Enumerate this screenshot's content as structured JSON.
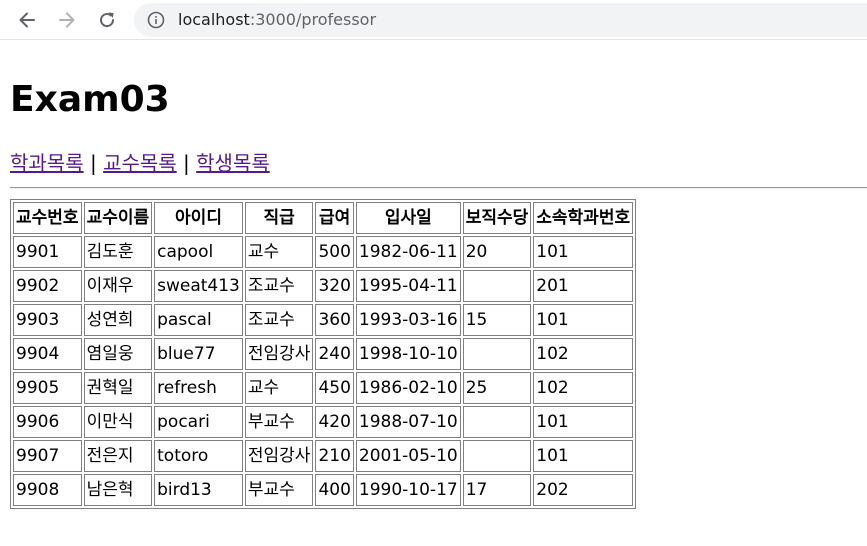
{
  "browser": {
    "url_host": "localhost",
    "url_path": ":3000/professor"
  },
  "page": {
    "title": "Exam03",
    "nav_links": [
      {
        "label": "학과목록"
      },
      {
        "label": "교수목록"
      },
      {
        "label": "학생목록"
      }
    ],
    "separator": "|"
  },
  "table": {
    "headers": [
      "교수번호",
      "교수이름",
      "아이디",
      "직급",
      "급여",
      "입사일",
      "보직수당",
      "소속학과번호"
    ],
    "rows": [
      [
        "9901",
        "김도훈",
        "capool",
        "교수",
        "500",
        "1982-06-11",
        "20",
        "101"
      ],
      [
        "9902",
        "이재우",
        "sweat413",
        "조교수",
        "320",
        "1995-04-11",
        "",
        "201"
      ],
      [
        "9903",
        "성연희",
        "pascal",
        "조교수",
        "360",
        "1993-03-16",
        "15",
        "101"
      ],
      [
        "9904",
        "염일웅",
        "blue77",
        "전임강사",
        "240",
        "1998-10-10",
        "",
        "102"
      ],
      [
        "9905",
        "권혁일",
        "refresh",
        "교수",
        "450",
        "1986-02-10",
        "25",
        "102"
      ],
      [
        "9906",
        "이만식",
        "pocari",
        "부교수",
        "420",
        "1988-07-10",
        "",
        "101"
      ],
      [
        "9907",
        "전은지",
        "totoro",
        "전임강사",
        "210",
        "2001-05-10",
        "",
        "101"
      ],
      [
        "9908",
        "남은혁",
        "bird13",
        "부교수",
        "400",
        "1990-10-17",
        "17",
        "202"
      ]
    ]
  }
}
